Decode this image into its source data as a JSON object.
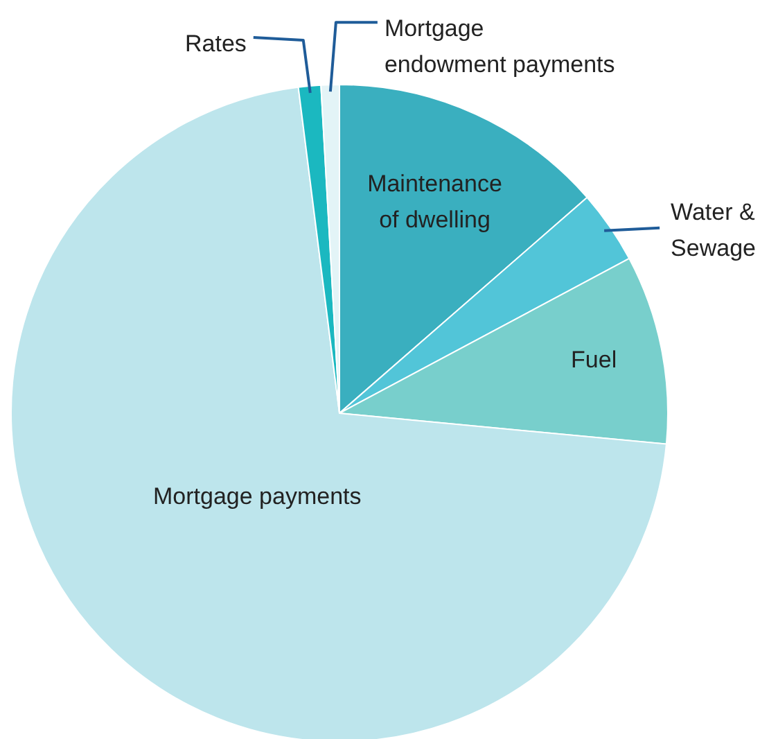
{
  "chart_data": {
    "type": "pie",
    "categories": [
      "Maintenance of dwelling",
      "Water & Sewage",
      "Fuel",
      "Mortgage payments",
      "Rates",
      "Mortgage endowment payments"
    ],
    "values": [
      13.6,
      3.6,
      9.3,
      71.5,
      1.1,
      0.9
    ],
    "colors": [
      "#3aafbf",
      "#52c5d8",
      "#78cfcc",
      "#bde5ec",
      "#1bb8c0",
      "#e3f4f7"
    ]
  }
}
